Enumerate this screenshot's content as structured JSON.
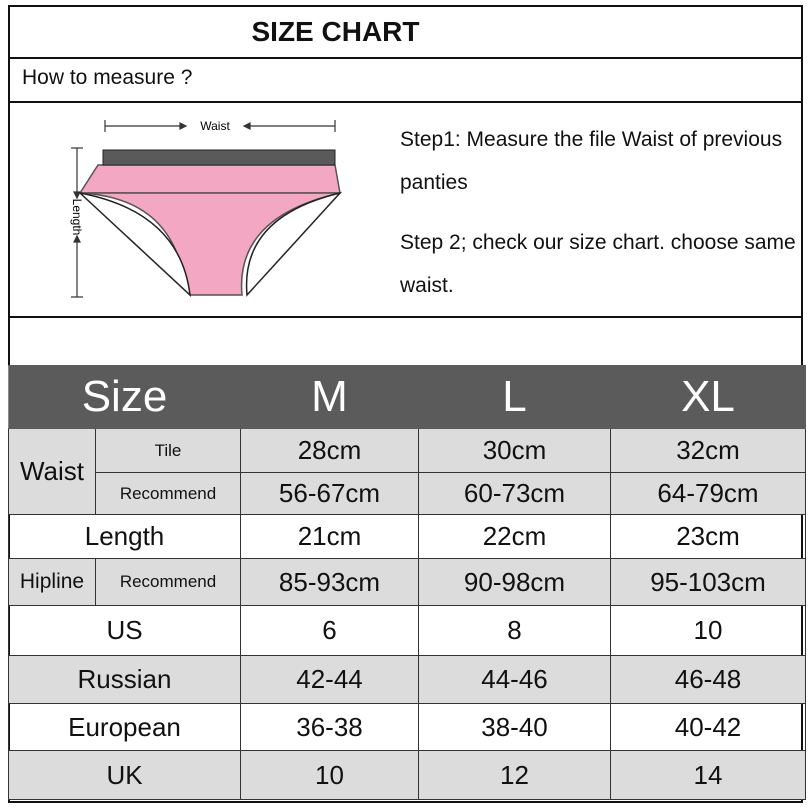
{
  "title": "SIZE CHART",
  "how_to_measure": "How to measure ?",
  "figure": {
    "waist_label": "Waist",
    "length_label": "Length",
    "colors": {
      "band": "#5a5a5a",
      "body": "#f4a7c3"
    }
  },
  "steps": [
    "Step1: Measure the file Waist of previous panties",
    "Step 2; check our size chart. choose same waist."
  ],
  "table": {
    "header": [
      "Size",
      "M",
      "L",
      "XL"
    ],
    "waist": {
      "label": "Waist",
      "tile_label": "Tile",
      "tile": [
        "28cm",
        "30cm",
        "32cm"
      ],
      "recommend_label": "Recommend",
      "recommend": [
        "56-67cm",
        "60-73cm",
        "64-79cm"
      ]
    },
    "length": {
      "label": "Length",
      "values": [
        "21cm",
        "22cm",
        "23cm"
      ]
    },
    "hipline": {
      "label": "Hipline",
      "sub_label": "Recommend",
      "values": [
        "85-93cm",
        "90-98cm",
        "95-103cm"
      ]
    },
    "us": {
      "label": "US",
      "values": [
        "6",
        "8",
        "10"
      ]
    },
    "russian": {
      "label": "Russian",
      "values": [
        "42-44",
        "44-46",
        "46-48"
      ]
    },
    "european": {
      "label": "European",
      "values": [
        "36-38",
        "38-40",
        "40-42"
      ]
    },
    "uk": {
      "label": "UK",
      "values": [
        "10",
        "12",
        "14"
      ]
    }
  }
}
